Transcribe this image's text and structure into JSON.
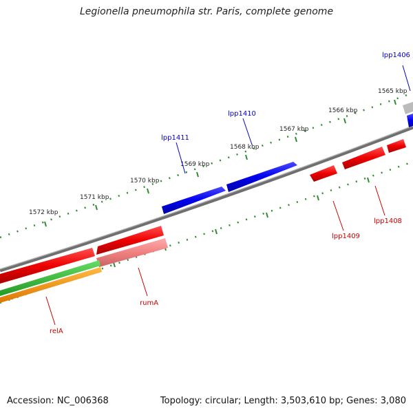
{
  "title": "Legionella pneumophila str. Paris, complete genome",
  "footer": {
    "accession": "Accession: NC_006368",
    "summary": "Topology: circular; Length: 3,503,610 bp; Genes: 3,080"
  },
  "colors": {
    "backbone": "#7f7f7f",
    "tick": "#2e8b2e",
    "forward_gene": "#0000ee",
    "reverse_gene": "#ee0000",
    "pseudo_gene": "#f08080",
    "trna_track": "#33bb33",
    "misc_track": "#ff9900",
    "grey_gene": "#bbbbbb",
    "forward_label": "#0000cc",
    "reverse_label": "#cc0000"
  },
  "ticks": {
    "outer": [
      "1565 kbp",
      "1566 kbp",
      "1567 kbp",
      "1568 kbp",
      "1569 kbp",
      "1570 kbp",
      "1571 kbp",
      "1572 kbp"
    ]
  },
  "genes": {
    "forward": [
      "lpp1406",
      "lpp1410",
      "lpp1411"
    ],
    "reverse": [
      "lpp1408",
      "lpp1409",
      "rumA",
      "relA"
    ]
  }
}
